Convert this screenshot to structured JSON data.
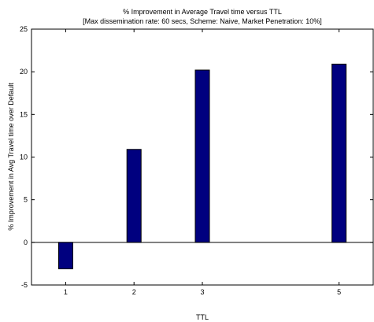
{
  "chart_data": {
    "type": "bar",
    "title": "% Improvement in Average Travel time versus TTL",
    "subtitle": "[Max dissemination rate: 60 secs, Scheme: Naive, Market Penetration: 10%]",
    "xlabel": "TTL",
    "ylabel": "% Improvement in Avg Travel time over Default",
    "x": [
      1,
      2,
      3,
      5
    ],
    "x_tick_labels": [
      "1",
      "2",
      "3",
      "5"
    ],
    "values": [
      -3.1,
      10.9,
      20.2,
      20.9
    ],
    "xlim": [
      0.5,
      5.5
    ],
    "ylim": [
      -5,
      25
    ],
    "y_ticks": [
      -5,
      0,
      5,
      10,
      15,
      20,
      25
    ],
    "grid": false,
    "bar_color": "#00007f",
    "zero_line": true
  }
}
